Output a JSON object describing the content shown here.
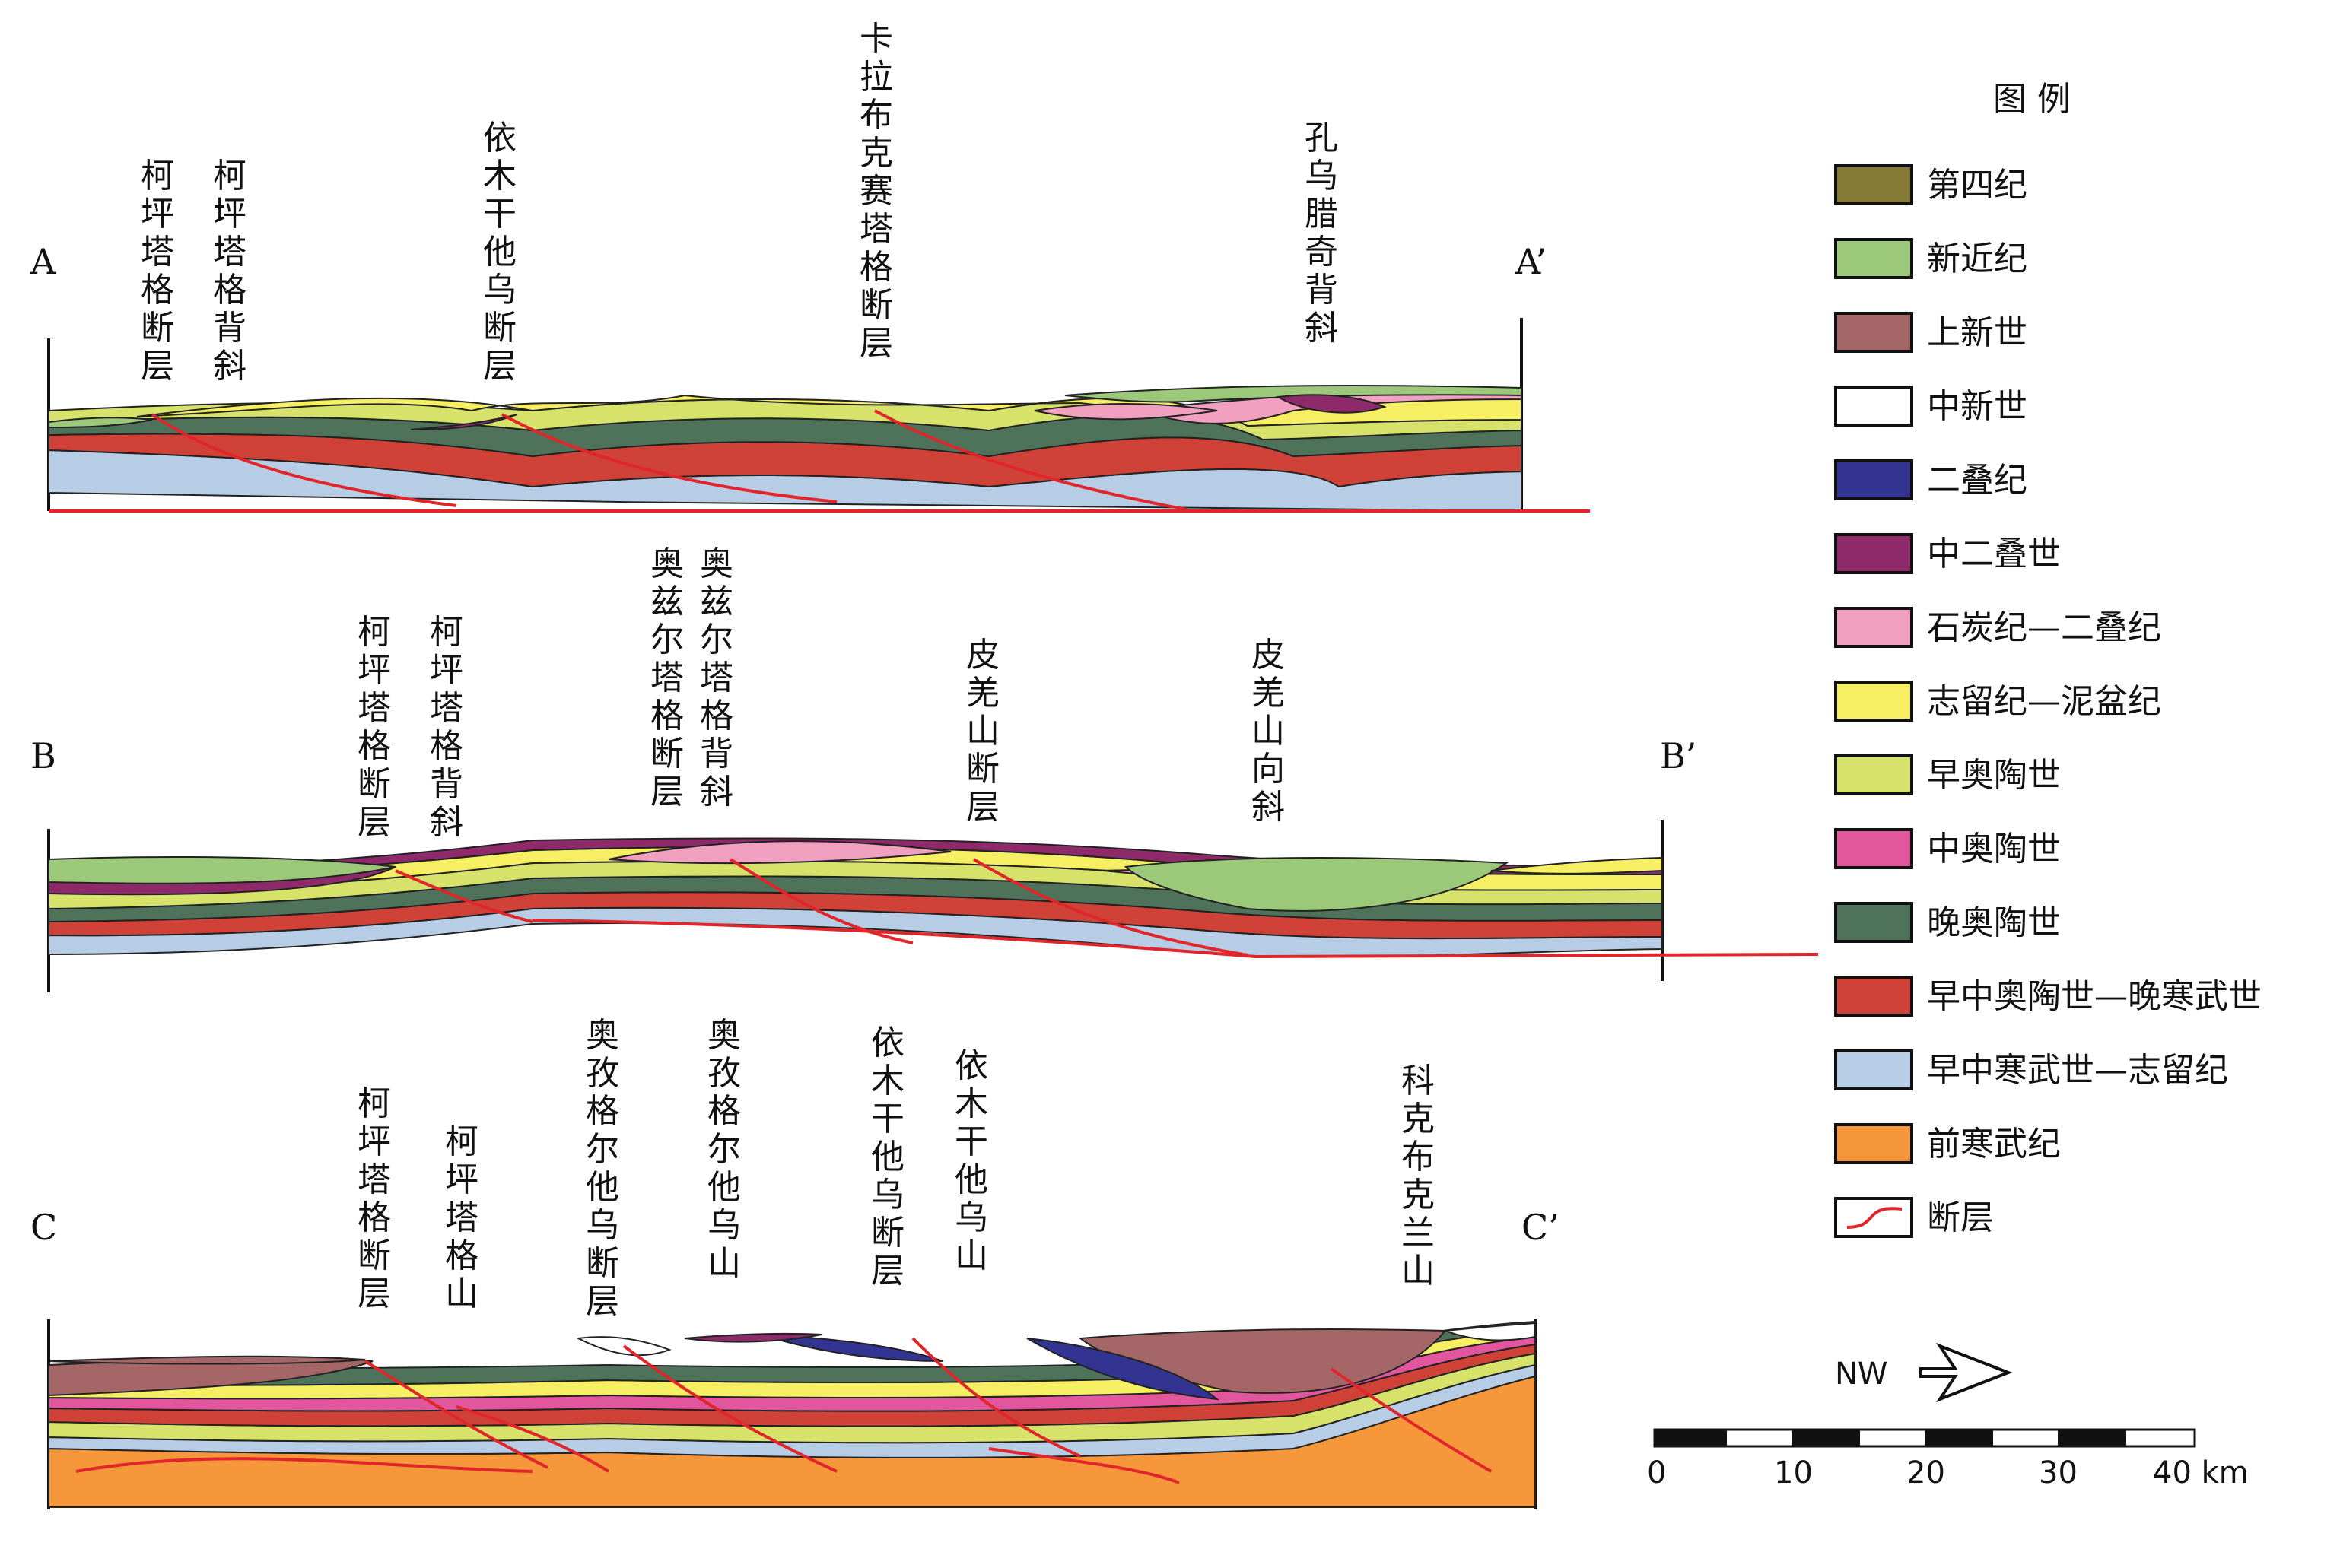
{
  "colors": {
    "quaternary": "#857a35",
    "neogene": "#9cc87a",
    "pliocene": "#a56668",
    "miocene": "#ffffff",
    "permian": "#333391",
    "mid_permian": "#8e2a6a",
    "carb_perm": "#f2a0c0",
    "sil_dev": "#f6ee63",
    "early_ord": "#d7e26b",
    "mid_ord": "#e2569d",
    "late_ord": "#4e735a",
    "emo_lc": "#d04137",
    "emc_sil": "#b7cde6",
    "precamb": "#f5973a",
    "fault": "#e0262a"
  },
  "sections": {
    "a": {
      "start": "A",
      "end": "A’",
      "labels": [
        {
          "chars": [
            "柯",
            "坪",
            "塔",
            "格",
            "断",
            "层"
          ]
        },
        {
          "chars": [
            "柯",
            "坪",
            "塔",
            "格",
            "背",
            "斜"
          ]
        },
        {
          "chars": [
            "依",
            "木",
            "干",
            "他",
            "乌",
            "断",
            "层"
          ]
        },
        {
          "chars": [
            "卡",
            "拉",
            "布",
            "克",
            "赛",
            "塔",
            "格",
            "断",
            "层"
          ]
        },
        {
          "chars": [
            "孔",
            "乌",
            "腊",
            "奇",
            "背",
            "斜"
          ]
        }
      ]
    },
    "b": {
      "start": "B",
      "end": "B’",
      "labels": [
        {
          "chars": [
            "柯",
            "坪",
            "塔",
            "格",
            "断",
            "层"
          ]
        },
        {
          "chars": [
            "柯",
            "坪",
            "塔",
            "格",
            "背",
            "斜"
          ]
        },
        {
          "chars": [
            "奥",
            "兹",
            "尔",
            "塔",
            "格",
            "断",
            "层"
          ]
        },
        {
          "chars": [
            "奥",
            "兹",
            "尔",
            "塔",
            "格",
            "背",
            "斜"
          ]
        },
        {
          "chars": [
            "皮",
            "羌",
            "山",
            "断",
            "层"
          ]
        },
        {
          "chars": [
            "皮",
            "羌",
            "山",
            "向",
            "斜"
          ]
        }
      ]
    },
    "c": {
      "start": "C",
      "end": "C’",
      "labels": [
        {
          "chars": [
            "柯",
            "坪",
            "塔",
            "格",
            "断",
            "层"
          ]
        },
        {
          "chars": [
            "柯",
            "坪",
            "塔",
            "格",
            "山"
          ]
        },
        {
          "chars": [
            "奥",
            "孜",
            "格",
            "尔",
            "他",
            "乌",
            "断",
            "层"
          ]
        },
        {
          "chars": [
            "奥",
            "孜",
            "格",
            "尔",
            "他",
            "乌",
            "山"
          ]
        },
        {
          "chars": [
            "依",
            "木",
            "干",
            "他",
            "乌",
            "断",
            "层"
          ]
        },
        {
          "chars": [
            "依",
            "木",
            "干",
            "他",
            "乌",
            "山"
          ]
        },
        {
          "chars": [
            "科",
            "克",
            "布",
            "克",
            "兰",
            "山"
          ]
        }
      ]
    }
  },
  "legend": {
    "title": "图 例",
    "items": [
      {
        "label": "第四纪",
        "color": "#857a35"
      },
      {
        "label": "新近纪",
        "color": "#9cc87a"
      },
      {
        "label": "上新世",
        "color": "#a56668"
      },
      {
        "label": "中新世",
        "color": "#ffffff"
      },
      {
        "label": "二叠纪",
        "color": "#333391"
      },
      {
        "label": "中二叠世",
        "color": "#8e2a6a"
      },
      {
        "label": "石炭纪—二叠纪",
        "color": "#f2a0c0"
      },
      {
        "label": "志留纪—泥盆纪",
        "color": "#f6ee63"
      },
      {
        "label": "早奥陶世",
        "color": "#d7e26b"
      },
      {
        "label": "中奥陶世",
        "color": "#e2569d"
      },
      {
        "label": "晚奥陶世",
        "color": "#4e735a"
      },
      {
        "label": "早中奥陶世—晚寒武世",
        "color": "#d04137"
      },
      {
        "label": "早中寒武世—志留纪",
        "color": "#b7cde6"
      },
      {
        "label": "前寒武纪",
        "color": "#f5973a"
      },
      {
        "label": "断层",
        "color": "#e0262a",
        "icon": "fault-line-icon"
      }
    ]
  },
  "north": {
    "label": "NW",
    "icon": "north-west-arrow-icon"
  },
  "scale": {
    "ticks": [
      "0",
      "10",
      "20",
      "30"
    ],
    "last": "40 km"
  }
}
